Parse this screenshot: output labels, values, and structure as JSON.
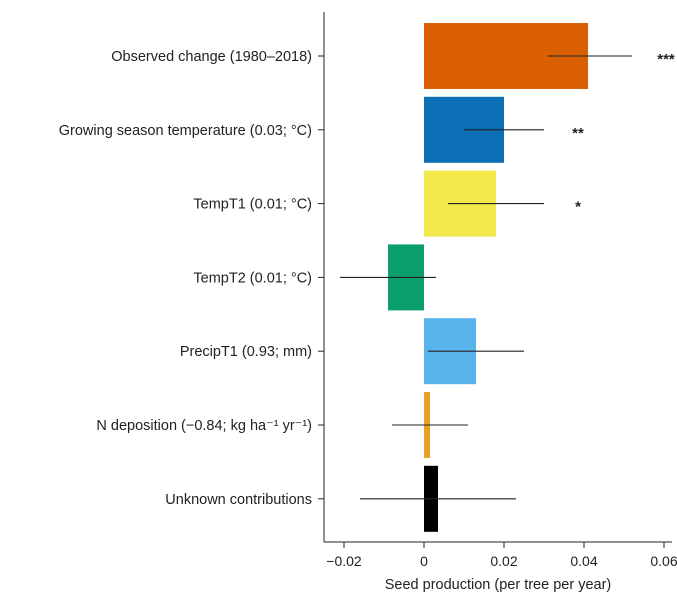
{
  "chart_data": {
    "type": "bar",
    "orientation": "horizontal",
    "xlabel": "Seed production (per tree per year)",
    "xlim": [
      -0.025,
      0.062
    ],
    "xticks": [
      -0.02,
      0,
      0.02,
      0.04,
      0.06
    ],
    "xtick_labels": [
      "−0.02",
      "0",
      "0.02",
      "0.04",
      "0.06"
    ],
    "grid": false,
    "bars": [
      {
        "label": "Observed change (1980–2018)",
        "value": 0.041,
        "ci": [
          0.031,
          0.052
        ],
        "sig": "***",
        "color": "#d95f02"
      },
      {
        "label": "Growing season temperature (0.03; °C)",
        "value": 0.02,
        "ci": [
          0.01,
          0.03
        ],
        "sig": "**",
        "color": "#0a6fb5"
      },
      {
        "label": "TempT1 (0.01; °C)",
        "value": 0.018,
        "ci": [
          0.006,
          0.03
        ],
        "sig": "*",
        "color": "#f2e84b"
      },
      {
        "label": "TempT2 (0.01; °C)",
        "value": -0.009,
        "ci": [
          -0.021,
          0.003
        ],
        "sig": "",
        "color": "#0a9e6f"
      },
      {
        "label": "PrecipT1 (0.93; mm)",
        "value": 0.013,
        "ci": [
          0.001,
          0.025
        ],
        "sig": "",
        "color": "#5ab4ec"
      },
      {
        "label": "N deposition (−0.84; kg ha⁻¹ yr⁻¹)",
        "value": 0.0015,
        "ci": [
          -0.008,
          0.011
        ],
        "sig": "",
        "color": "#e5a220"
      },
      {
        "label": "Unknown contributions",
        "value": 0.0035,
        "ci": [
          -0.016,
          0.023
        ],
        "sig": "",
        "color": "#000000"
      }
    ]
  }
}
